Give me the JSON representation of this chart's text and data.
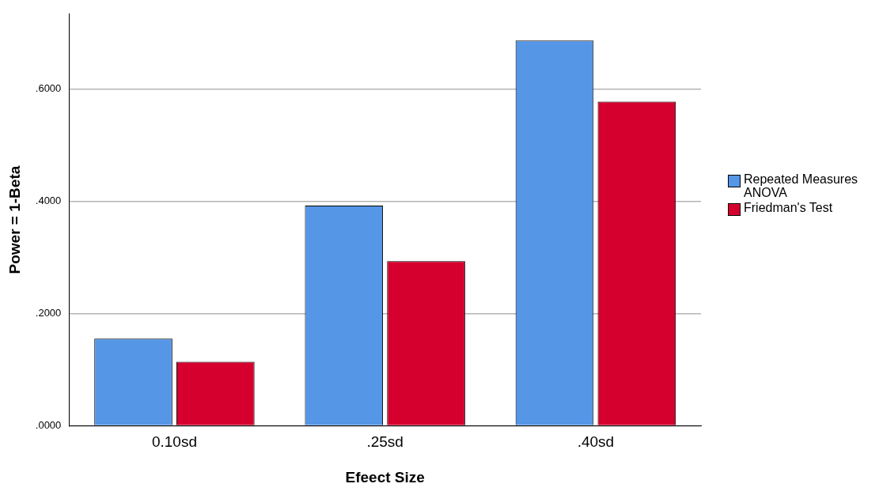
{
  "chart_data": {
    "type": "bar",
    "xlabel": "Efeect Size",
    "ylabel": "Power = 1-Beta",
    "categories": [
      "0.10sd",
      ".25sd",
      ".40sd"
    ],
    "series": [
      {
        "name": "Repeated Measures ANOVA",
        "color": "#5596e6",
        "values": [
          0.155,
          0.392,
          0.686
        ]
      },
      {
        "name": "Friedman's Test",
        "color": "#d6002e",
        "values": [
          0.114,
          0.293,
          0.577
        ]
      }
    ],
    "ylim": [
      0,
      0.733
    ],
    "yticks": [
      {
        "value": 0,
        "label": ".0000"
      },
      {
        "value": 0.2,
        "label": ".2000"
      },
      {
        "value": 0.4,
        "label": ".4000"
      },
      {
        "value": 0.6,
        "label": ".6000"
      }
    ],
    "grid": "y",
    "legend": "right"
  }
}
